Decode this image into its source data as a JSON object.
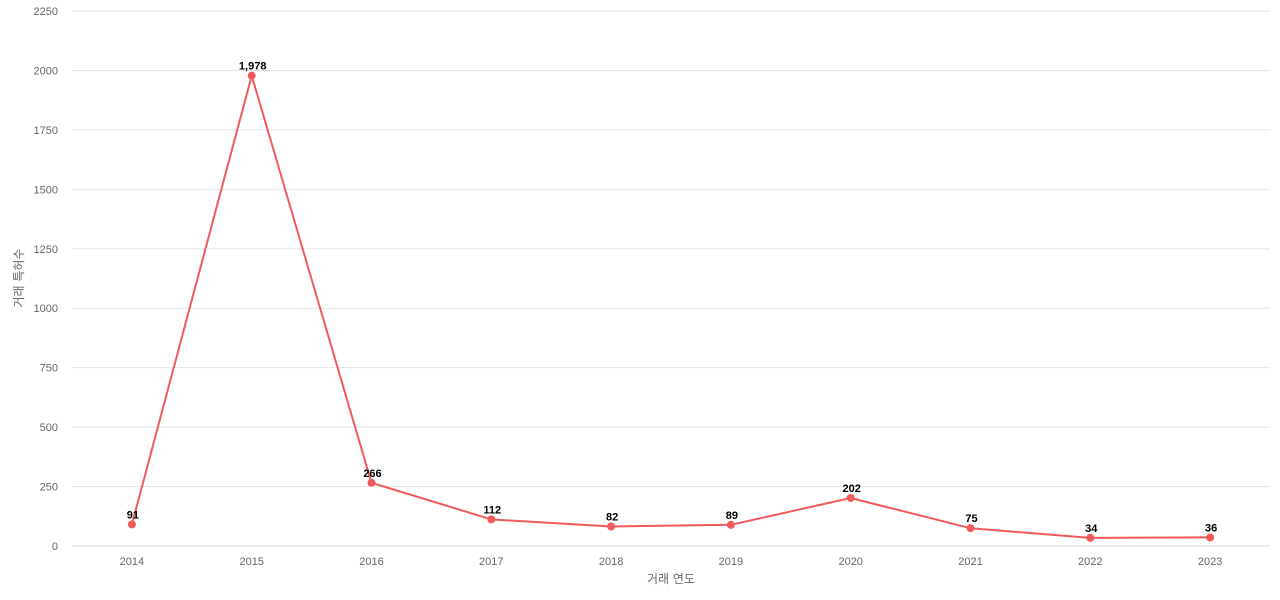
{
  "chart_data": {
    "type": "line",
    "title": "",
    "xlabel": "거래 연도",
    "ylabel": "거래 특허수",
    "categories": [
      "2014",
      "2015",
      "2016",
      "2017",
      "2018",
      "2019",
      "2020",
      "2021",
      "2022",
      "2023"
    ],
    "series": [
      {
        "values": [
          91,
          1978,
          266,
          112,
          82,
          89,
          202,
          75,
          34,
          36
        ],
        "color": "#f05a5a"
      }
    ],
    "data_labels": [
      "91",
      "1,978",
      "266",
      "112",
      "82",
      "89",
      "202",
      "75",
      "34",
      "36"
    ],
    "ylim": [
      0,
      2250
    ],
    "yticks": [
      0,
      250,
      500,
      750,
      1000,
      1250,
      1500,
      1750,
      2000,
      2250
    ],
    "grid": true,
    "legend": "none"
  }
}
